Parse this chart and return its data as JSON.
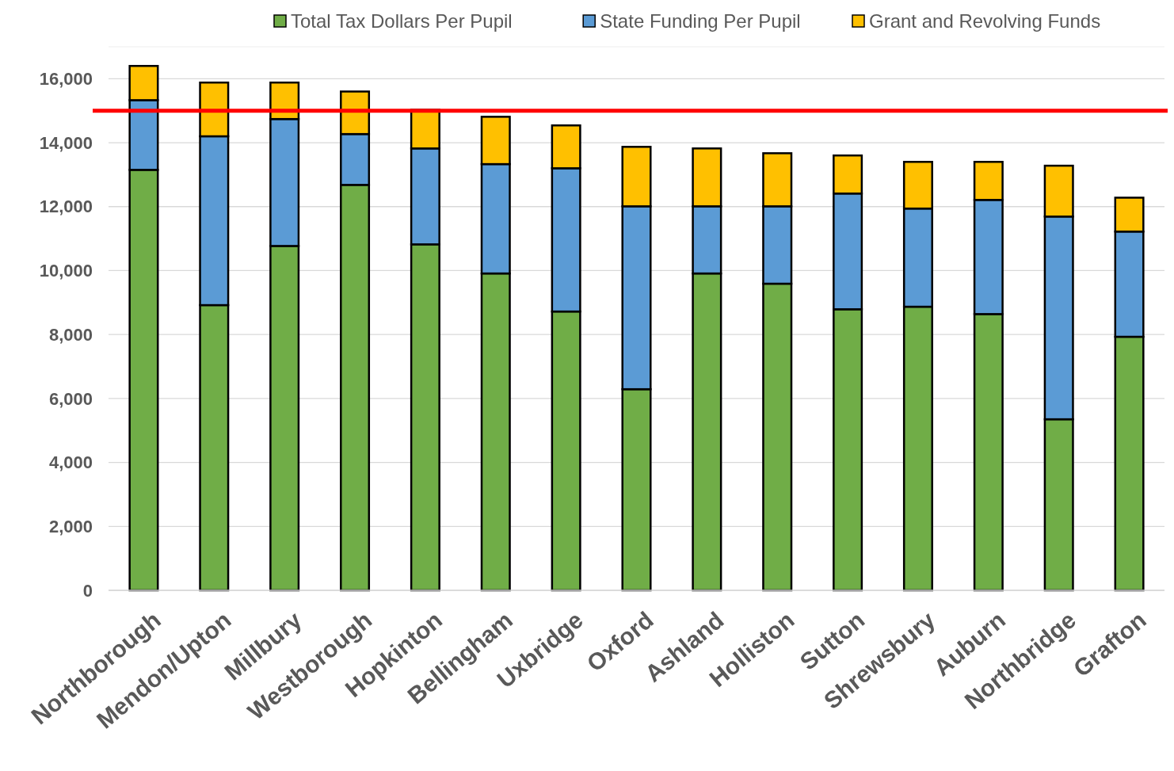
{
  "chart_data": {
    "type": "bar",
    "stacked": true,
    "categories": [
      "Northborough",
      "Mendon/Upton",
      "Millbury",
      "Westborough",
      "Hopkinton",
      "Bellingham",
      "Uxbridge",
      "Oxford",
      "Ashland",
      "Holliston",
      "Sutton",
      "Shrewsbury",
      "Auburn",
      "Northbridge",
      "Grafton"
    ],
    "series": [
      {
        "name": "Total Tax Dollars Per Pupil",
        "color": "#70ad47",
        "values": [
          13150,
          8920,
          10770,
          12680,
          10820,
          9910,
          8720,
          6290,
          9910,
          9590,
          8790,
          8870,
          8640,
          5350,
          7930
        ]
      },
      {
        "name": "State Funding Per Pupil",
        "color": "#5b9bd5",
        "values": [
          2180,
          5280,
          3970,
          1590,
          3000,
          3420,
          4480,
          5720,
          2100,
          2420,
          3620,
          3070,
          3570,
          6340,
          3290
        ]
      },
      {
        "name": "Grant and Revolving Funds",
        "color": "#ffc000",
        "values": [
          1070,
          1680,
          1140,
          1330,
          1210,
          1480,
          1340,
          1860,
          1810,
          1660,
          1190,
          1460,
          1190,
          1590,
          1060
        ]
      }
    ],
    "ylim": [
      0,
      17000
    ],
    "yticks": [
      {
        "value": 0,
        "label": "0"
      },
      {
        "value": 2000,
        "label": "2,000"
      },
      {
        "value": 4000,
        "label": "4,000"
      },
      {
        "value": 6000,
        "label": "6,000"
      },
      {
        "value": 8000,
        "label": "8,000"
      },
      {
        "value": 10000,
        "label": "10,000"
      },
      {
        "value": 12000,
        "label": "12,000"
      },
      {
        "value": 14000,
        "label": "14,000"
      },
      {
        "value": 16000,
        "label": "16,000"
      }
    ],
    "grid": "y",
    "legend": "top",
    "ref_lines": [
      {
        "axis": "y",
        "value": 15000,
        "color": "#ff0000"
      }
    ]
  }
}
